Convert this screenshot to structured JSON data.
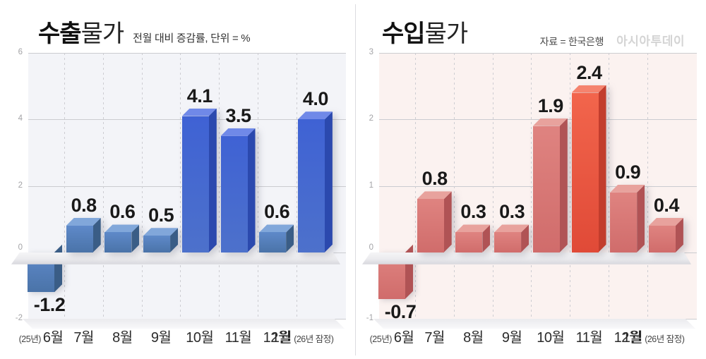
{
  "chart_data": [
    {
      "type": "bar",
      "panel": "left",
      "title_bold": "수출",
      "title_regular": "물가",
      "subtitle": "전월 대비 증감률, 단위 = %",
      "source": "",
      "watermark": "",
      "categories": [
        "6월",
        "7월",
        "8월",
        "9월",
        "10월",
        "11월",
        "12월",
        "1월"
      ],
      "first_category_prefix": "(25년)",
      "last_category_suffix": "(26년 잠정)",
      "values": [
        -1.2,
        0.8,
        0.6,
        0.5,
        4.1,
        3.5,
        0.6,
        4.0
      ],
      "value_labels": [
        "-1.2",
        "0.8",
        "0.6",
        "0.5",
        "4.1",
        "3.5",
        "0.6",
        "4.0"
      ],
      "highlighted_indexes": [
        4,
        5,
        7
      ],
      "ylim": [
        -2,
        6
      ],
      "y_ticks": [
        6,
        4,
        2,
        0,
        -2
      ],
      "grid": {
        "horizontal": "solid",
        "vertical": "dashed"
      },
      "legend": false,
      "unit": "%",
      "theme": {
        "plot_bg": "#f3f4f8",
        "bar": {
          "front_top": "#5e89c9",
          "front_bottom": "#4a73a8",
          "top": "#81a7da",
          "side": "#3a5d86"
        },
        "bar_highlight": {
          "front_top": "#3f62d4",
          "front_bottom": "#4d71cb",
          "top": "#7089e8",
          "side": "#2b49ae"
        }
      }
    },
    {
      "type": "bar",
      "panel": "right",
      "title_bold": "수입",
      "title_regular": "물가",
      "subtitle": "",
      "source": "자료 = 한국은행",
      "watermark": "아시아투데이",
      "categories": [
        "6월",
        "7월",
        "8월",
        "9월",
        "10월",
        "11월",
        "12월",
        "1월"
      ],
      "first_category_prefix": "(25년)",
      "last_category_suffix": "(26년 잠정)",
      "values": [
        -0.7,
        0.8,
        0.3,
        0.3,
        1.9,
        2.4,
        0.9,
        0.4
      ],
      "value_labels": [
        "-0.7",
        "0.8",
        "0.3",
        "0.3",
        "1.9",
        "2.4",
        "0.9",
        "0.4"
      ],
      "highlighted_indexes": [
        5
      ],
      "ylim": [
        -1,
        3
      ],
      "y_ticks": [
        3,
        2,
        1,
        0,
        -1
      ],
      "grid": {
        "horizontal": "solid",
        "vertical": "dashed"
      },
      "legend": false,
      "unit": "%",
      "theme": {
        "plot_bg": "#fbf2f0",
        "bar": {
          "front_top": "#df8380",
          "front_bottom": "#d06c6b",
          "top": "#e8a29d",
          "side": "#b05355"
        },
        "bar_highlight": {
          "front_top": "#f2654c",
          "front_bottom": "#e04a37",
          "top": "#f5836e",
          "side": "#c23d2d"
        }
      }
    }
  ],
  "decor": {
    "floor_top": "#f4f4f6",
    "floor_mid": "#ebebee",
    "floor_bottom": "#d7d7dd",
    "base_top": "#ebebee",
    "base_bottom": "#f8f8fa",
    "gridline": "#cbccd0",
    "dashed_line": "#cdcdd2"
  }
}
